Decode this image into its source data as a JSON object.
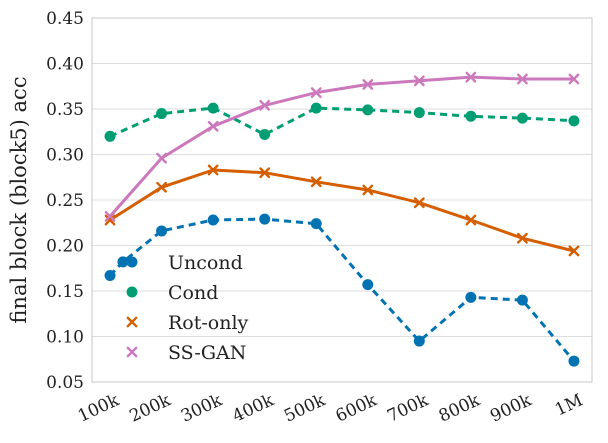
{
  "chart_data": {
    "type": "line",
    "xlabel": "",
    "ylabel": "final block (block5) acc",
    "ylim": [
      0.05,
      0.45
    ],
    "yticks": [
      "0.05",
      "0.10",
      "0.15",
      "0.20",
      "0.25",
      "0.30",
      "0.35",
      "0.40",
      "0.45"
    ],
    "yticks_values": [
      0.05,
      0.1,
      0.15,
      0.2,
      0.25,
      0.3,
      0.35,
      0.4,
      0.45
    ],
    "xlim": [
      65,
      1035
    ],
    "x_tick_labels": [
      "100k",
      "200k",
      "300k",
      "400k",
      "500k",
      "600k",
      "700k",
      "800k",
      "900k",
      "1M"
    ],
    "x_tick_values": [
      100,
      200,
      300,
      400,
      500,
      600,
      700,
      800,
      900,
      1000
    ],
    "grid": true,
    "legend_position": "lower-left",
    "series": [
      {
        "name": "Uncond",
        "color": "#0173b2",
        "marker": "circle",
        "line": "dashed",
        "x": [
          100,
          125,
          200,
          300,
          400,
          500,
          600,
          700,
          800,
          900,
          1000
        ],
        "y": [
          0.167,
          0.182,
          0.216,
          0.228,
          0.229,
          0.224,
          0.157,
          0.095,
          0.143,
          0.14,
          0.073
        ]
      },
      {
        "name": "Cond",
        "color": "#029e73",
        "marker": "circle",
        "line": "dashed",
        "x": [
          100,
          200,
          300,
          400,
          500,
          600,
          700,
          800,
          900,
          1000
        ],
        "y": [
          0.32,
          0.345,
          0.351,
          0.322,
          0.351,
          0.349,
          0.346,
          0.342,
          0.34,
          0.337
        ]
      },
      {
        "name": "Rot-only",
        "color": "#d55e00",
        "marker": "x",
        "line": "solid",
        "x": [
          100,
          200,
          300,
          400,
          500,
          600,
          700,
          800,
          900,
          1000
        ],
        "y": [
          0.228,
          0.264,
          0.283,
          0.28,
          0.27,
          0.261,
          0.247,
          0.228,
          0.208,
          0.194
        ]
      },
      {
        "name": "SS-GAN",
        "color": "#cc78bc",
        "marker": "x",
        "line": "solid",
        "x": [
          100,
          200,
          300,
          400,
          500,
          600,
          700,
          800,
          900,
          1000
        ],
        "y": [
          0.232,
          0.296,
          0.331,
          0.354,
          0.368,
          0.377,
          0.381,
          0.385,
          0.383,
          0.383
        ]
      }
    ]
  }
}
